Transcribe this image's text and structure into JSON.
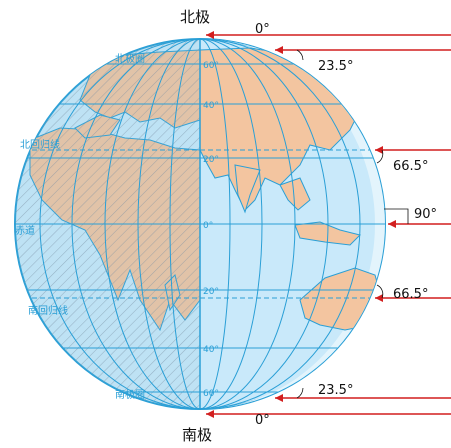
{
  "poles": {
    "north": "北极",
    "south": "南极"
  },
  "sun_angles": {
    "top_zero": "0°",
    "north_tropic": "23.5°",
    "north_circle": "66.5°",
    "equator": "90°",
    "south_circle": "66.5°",
    "south_tropic": "23.5°",
    "bottom_zero": "0°"
  },
  "latitude_labels": [
    "60°",
    "40°",
    "20°",
    "0°",
    "20°",
    "40°",
    "60°"
  ],
  "circle_labels": {
    "arctic": "北极圈",
    "north_tropic": "北回归线",
    "equator": "赤道",
    "south_tropic": "南回归线",
    "antarctic": "南极圈"
  },
  "colors": {
    "ocean_day": "#c9e9fa",
    "ocean_night": "#a7d8f0",
    "land": "#f3c5a0",
    "grid": "#2a9fd6",
    "sun_ray": "#d21f1f",
    "hatch": "#7c8a9a"
  }
}
